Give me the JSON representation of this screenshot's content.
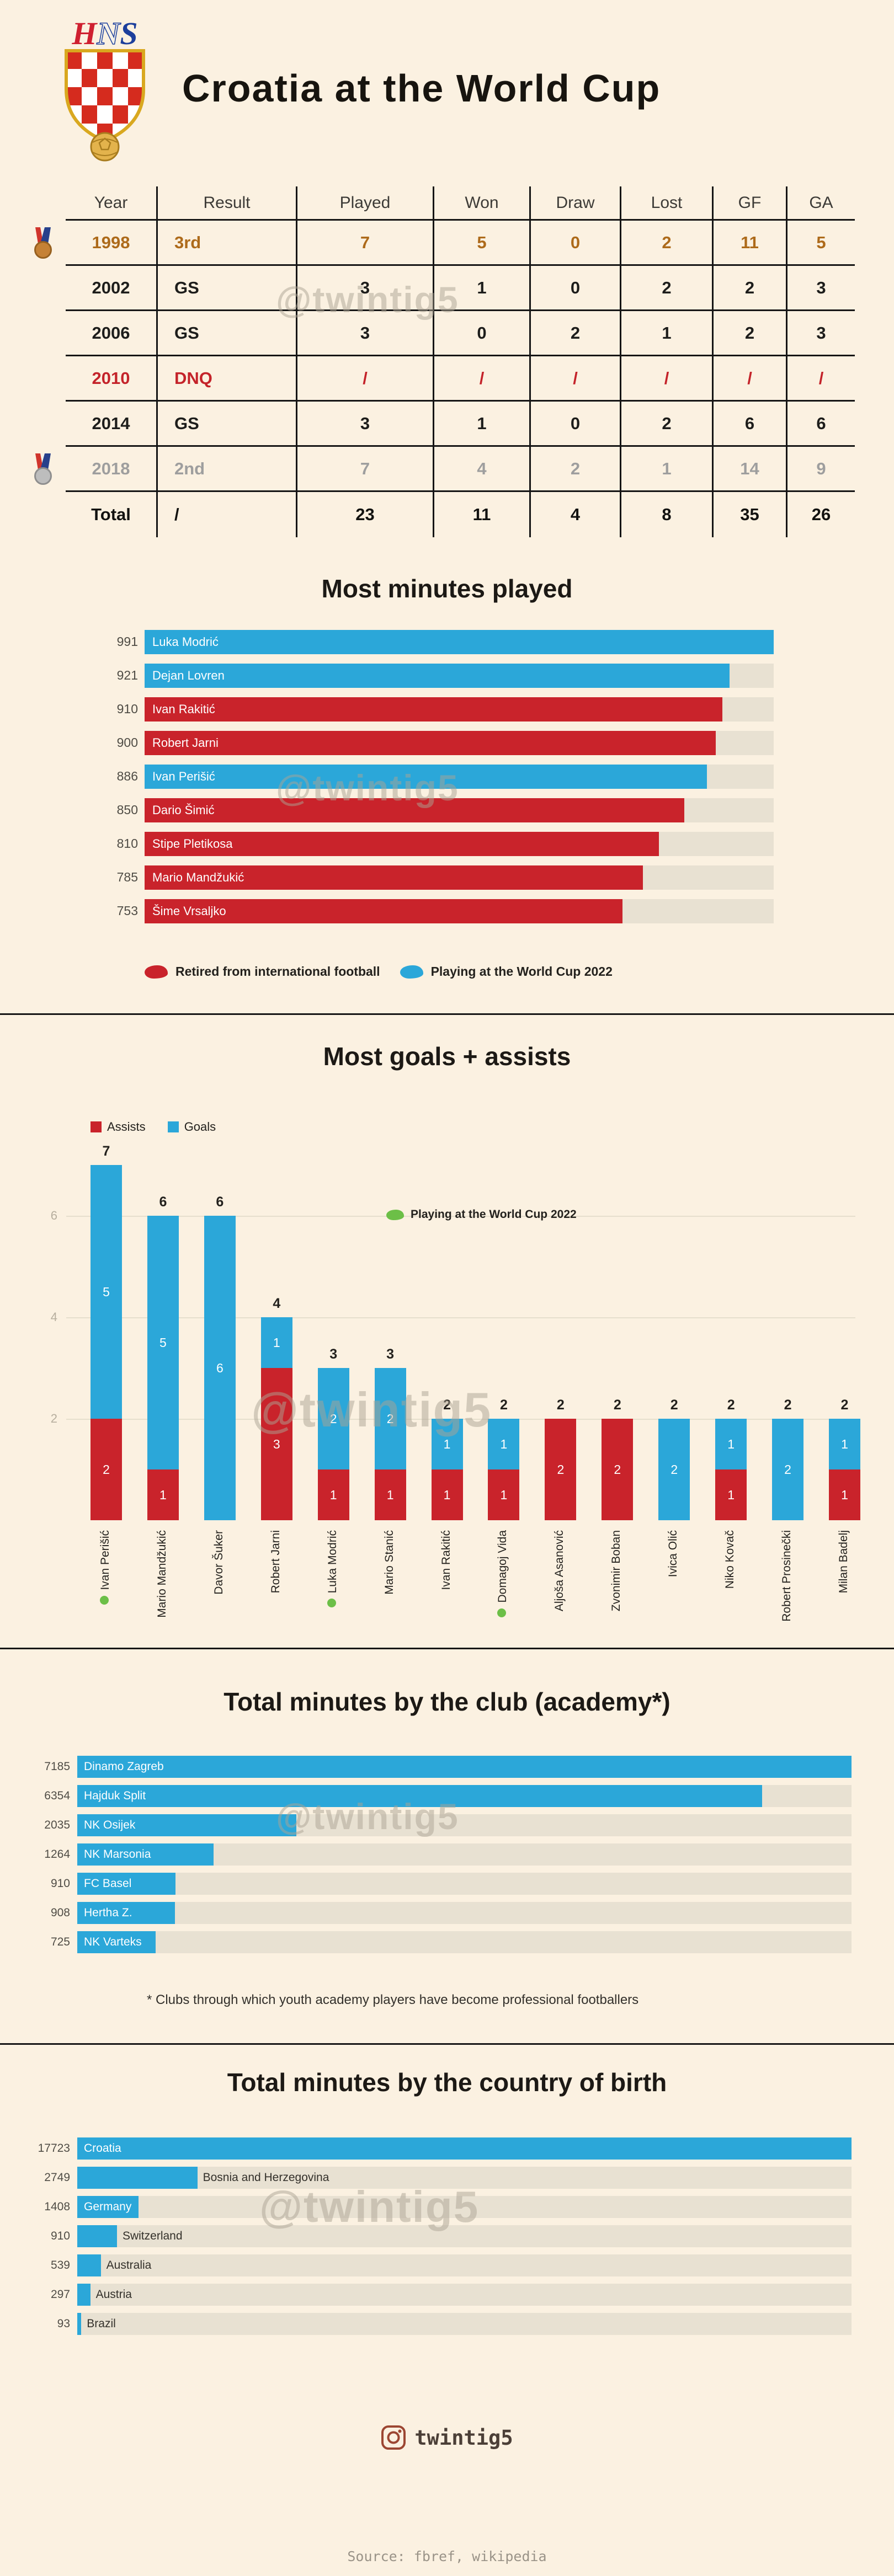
{
  "page": {
    "title": "Croatia at the World Cup",
    "watermark": "@twintig5",
    "instagram_handle": "twintig5",
    "source": "Source: fbref, wikipedia",
    "colors": {
      "background": "#fbf1e1",
      "blue": "#2ba7d9",
      "red": "#c9232b",
      "bronze": "#ad6a1a",
      "silver": "#9e9e9e",
      "green": "#6cbf47",
      "track": "#e8e1d2"
    }
  },
  "logo": {
    "letters": [
      "H",
      "N",
      "S"
    ]
  },
  "table": {
    "headers": [
      "Year",
      "Result",
      "Played",
      "Won",
      "Draw",
      "Lost",
      "GF",
      "GA"
    ],
    "rows": [
      {
        "medal": "bronze",
        "tone": "bronze",
        "cells": [
          "1998",
          "3rd",
          "7",
          "5",
          "0",
          "2",
          "11",
          "5"
        ]
      },
      {
        "medal": "",
        "tone": "normal",
        "cells": [
          "2002",
          "GS",
          "3",
          "1",
          "0",
          "2",
          "2",
          "3"
        ]
      },
      {
        "medal": "",
        "tone": "normal",
        "cells": [
          "2006",
          "GS",
          "3",
          "0",
          "2",
          "1",
          "2",
          "3"
        ]
      },
      {
        "medal": "",
        "tone": "red",
        "cells": [
          "2010",
          "DNQ",
          "/",
          "/",
          "/",
          "/",
          "/",
          "/"
        ]
      },
      {
        "medal": "",
        "tone": "normal",
        "cells": [
          "2014",
          "GS",
          "3",
          "1",
          "0",
          "2",
          "6",
          "6"
        ]
      },
      {
        "medal": "silver",
        "tone": "silver",
        "cells": [
          "2018",
          "2nd",
          "7",
          "4",
          "2",
          "1",
          "14",
          "9"
        ]
      },
      {
        "medal": "",
        "tone": "total",
        "cells": [
          "Total",
          "/",
          "23",
          "11",
          "4",
          "8",
          "35",
          "26"
        ]
      }
    ]
  },
  "chart_data": [
    {
      "id": "most-minutes-played",
      "type": "bar",
      "orientation": "horizontal",
      "title": "Most minutes played",
      "categories": [
        "Luka Modrić",
        "Dejan Lovren",
        "Ivan Rakitić",
        "Robert Jarni",
        "Ivan Perišić",
        "Dario Šimić",
        "Stipe Pletikosa",
        "Mario Mandžukić",
        "Šime Vrsaljko"
      ],
      "values": [
        991,
        921,
        910,
        900,
        886,
        850,
        810,
        785,
        753
      ],
      "statuses": [
        "playing",
        "playing",
        "retired",
        "retired",
        "playing",
        "retired",
        "retired",
        "retired",
        "retired"
      ],
      "xlim": [
        0,
        991
      ],
      "grid": false,
      "legend_position": "bottom",
      "legend": [
        {
          "label": "Retired from international football",
          "color": "#c9232b"
        },
        {
          "label": "Playing at the World Cup 2022",
          "color": "#2ba7d9"
        }
      ]
    },
    {
      "id": "most-goals-assists",
      "type": "bar",
      "stacked": true,
      "orientation": "vertical",
      "title": "Most goals + assists",
      "categories": [
        "Ivan Perišić",
        "Mario Mandžukić",
        "Davor Šuker",
        "Robert Jarni",
        "Luka Modrić",
        "Mario Stanić",
        "Ivan Rakitić",
        "Domagoj Vida",
        "Aljoša Asanović",
        "Zvonimir Boban",
        "Ivica Olić",
        "Niko Kovač",
        "Robert Prosinečki",
        "Milan Badelj"
      ],
      "series": [
        {
          "name": "Assists",
          "color": "#c9232b",
          "values": [
            2,
            1,
            0,
            3,
            1,
            1,
            1,
            1,
            2,
            2,
            0,
            1,
            0,
            1
          ]
        },
        {
          "name": "Goals",
          "color": "#2ba7d9",
          "values": [
            5,
            5,
            6,
            1,
            2,
            2,
            1,
            1,
            0,
            0,
            2,
            1,
            2,
            1
          ]
        }
      ],
      "totals": [
        7,
        6,
        6,
        4,
        3,
        3,
        2,
        2,
        2,
        2,
        2,
        2,
        2,
        2
      ],
      "playing_2022": [
        "Ivan Perišić",
        "Luka Modrić",
        "Domagoj Vida"
      ],
      "note": "Playing at the World Cup 2022",
      "ylim": [
        0,
        7
      ],
      "yticks": [
        2,
        4,
        6
      ],
      "grid": true,
      "legend_position": "top-left"
    },
    {
      "id": "minutes-by-club",
      "type": "bar",
      "orientation": "horizontal",
      "title": "Total minutes by the club (academy*)",
      "categories": [
        "Dinamo Zagreb",
        "Hajduk Split",
        "NK Osijek",
        "NK Marsonia",
        "FC Basel",
        "Hertha Z.",
        "NK Varteks"
      ],
      "values": [
        7185,
        6354,
        2035,
        1264,
        910,
        908,
        725
      ],
      "xlim": [
        0,
        7185
      ],
      "grid": false,
      "footnote": "* Clubs through which youth academy players have become professional footballers"
    },
    {
      "id": "minutes-by-country-of-birth",
      "type": "bar",
      "orientation": "horizontal",
      "title": "Total minutes by the country of birth",
      "categories": [
        "Croatia",
        "Bosnia and Herzegovina",
        "Germany",
        "Switzerland",
        "Australia",
        "Austria",
        "Brazil"
      ],
      "values": [
        17723,
        2749,
        1408,
        910,
        539,
        297,
        93
      ],
      "label_inside": [
        true,
        false,
        true,
        false,
        false,
        false,
        false
      ],
      "xlim": [
        0,
        17723
      ],
      "grid": false
    }
  ]
}
